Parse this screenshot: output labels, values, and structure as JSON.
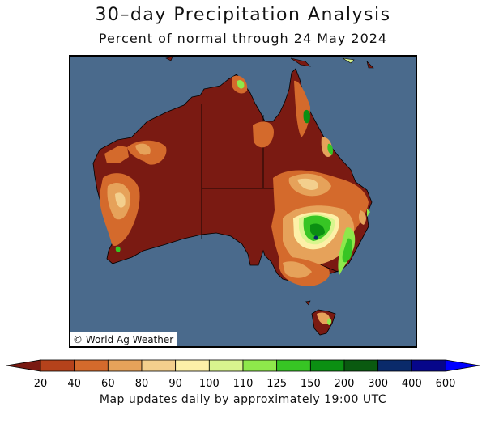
{
  "title": "30–day Precipitation Analysis",
  "subtitle": "Percent of normal through 24 May 2024",
  "credit": "© World Ag Weather",
  "footer": "Map updates daily by approximately 19:00 UTC",
  "colors": {
    "ocean": "#4a6a8c",
    "land_dry": "#7a1a12",
    "c20": "#7a1a12",
    "c40": "#b5421b",
    "c60": "#d46a2c",
    "c80": "#e6a25a",
    "c90": "#f3cf8d",
    "c100": "#fdf0a8",
    "c110": "#d9f58e",
    "c125": "#8ee84b",
    "c150": "#37c524",
    "c200": "#0b8f12",
    "c300": "#0a5a10",
    "c400": "#0a2a6a",
    "c500": "#06068a",
    "c600": "#0000ff"
  },
  "legend": {
    "tick_labels": [
      "20",
      "40",
      "60",
      "80",
      "90",
      "100",
      "110",
      "125",
      "150",
      "200",
      "300",
      "400",
      "600"
    ],
    "bins": [
      "#b5421b",
      "#d46a2c",
      "#e6a25a",
      "#f3cf8d",
      "#fdf0a8",
      "#d9f58e",
      "#8ee84b",
      "#37c524",
      "#0b8f12",
      "#0a5a10",
      "#0a2a6a",
      "#06068a"
    ],
    "low_arrow": "#7a1a12",
    "high_arrow": "#0000ff"
  }
}
